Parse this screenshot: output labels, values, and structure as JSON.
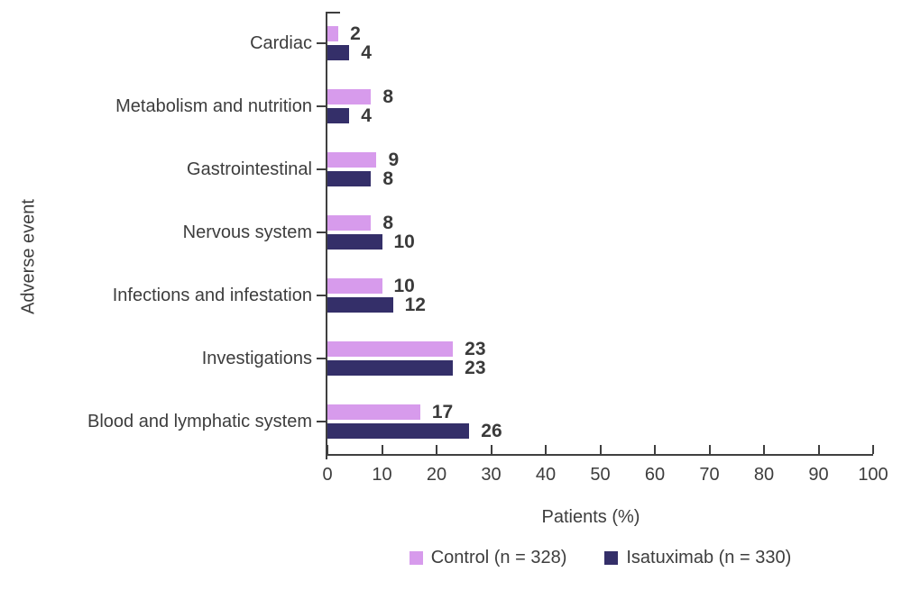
{
  "chart_data": {
    "type": "bar",
    "orientation": "horizontal",
    "title": "",
    "categories": [
      "Cardiac",
      "Metabolism and nutrition",
      "Gastrointestinal",
      "Nervous system",
      "Infections and infestation",
      "Investigations",
      "Blood and lymphatic system"
    ],
    "series": [
      {
        "name": "Control (n = 328)",
        "color": "#d79bec",
        "values": [
          2,
          8,
          9,
          8,
          10,
          23,
          17
        ]
      },
      {
        "name": "Isatuximab (n = 330)",
        "color": "#342f69",
        "values": [
          4,
          4,
          8,
          10,
          12,
          23,
          26
        ]
      }
    ],
    "xlabel": "Patients (%)",
    "ylabel": "Adverse event",
    "xlim": [
      0,
      100
    ],
    "xticks": [
      0,
      10,
      20,
      30,
      40,
      50,
      60,
      70,
      80,
      90,
      100
    ],
    "grid": false,
    "legend_position": "bottom",
    "value_labels": true,
    "axis_color": "#3f3f3f",
    "text_color": "#3d3d3d",
    "background_color": "#ffffff"
  }
}
